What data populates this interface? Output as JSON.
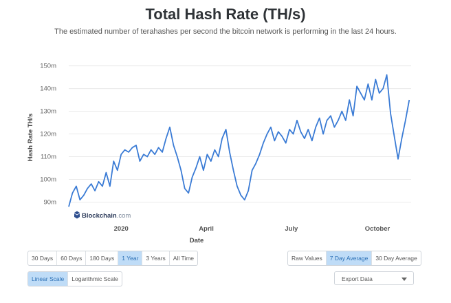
{
  "header": {
    "title": "Total Hash Rate (TH/s)",
    "subtitle": "The estimated number of terahashes per second the bitcoin network is performing in the last 24 hours."
  },
  "watermark": {
    "brand": "Blockchain",
    "suffix": ".com"
  },
  "colors": {
    "line": "#3a7bd5",
    "grid": "#eaeaea",
    "active_bg": "#bfdcf7",
    "active_text": "#2a6fb5"
  },
  "chart_data": {
    "type": "line",
    "title": "Total Hash Rate (TH/s)",
    "xlabel": "Date",
    "ylabel": "Hash Rate TH/s",
    "ylim": [
      85,
      152
    ],
    "y_ticks": [
      90,
      100,
      110,
      120,
      130,
      140,
      150
    ],
    "y_tick_labels": [
      "90m",
      "100m",
      "110m",
      "120m",
      "130m",
      "140m",
      "150m"
    ],
    "x_ticks": [
      "2020-01-01",
      "2020-04-01",
      "2020-07-01",
      "2020-10-01"
    ],
    "x_tick_labels": [
      "2020",
      "April",
      "July",
      "October"
    ],
    "x_range": [
      "2019-11-06",
      "2020-11-06"
    ],
    "grid": true,
    "series": [
      {
        "x": [
          "2019-11-06",
          "2019-11-10",
          "2019-11-14",
          "2019-11-18",
          "2019-11-22",
          "2019-11-26",
          "2019-11-30",
          "2019-12-04",
          "2019-12-08",
          "2019-12-12",
          "2019-12-16",
          "2019-12-20",
          "2019-12-24",
          "2019-12-28",
          "2020-01-01",
          "2020-01-05",
          "2020-01-09",
          "2020-01-13",
          "2020-01-17",
          "2020-01-21",
          "2020-01-25",
          "2020-01-29",
          "2020-02-02",
          "2020-02-06",
          "2020-02-10",
          "2020-02-14",
          "2020-02-18",
          "2020-02-22",
          "2020-02-26",
          "2020-03-01",
          "2020-03-05",
          "2020-03-09",
          "2020-03-13",
          "2020-03-17",
          "2020-03-21",
          "2020-03-25",
          "2020-03-29",
          "2020-04-02",
          "2020-04-06",
          "2020-04-10",
          "2020-04-14",
          "2020-04-18",
          "2020-04-22",
          "2020-04-26",
          "2020-04-30",
          "2020-05-04",
          "2020-05-08",
          "2020-05-12",
          "2020-05-16",
          "2020-05-20",
          "2020-05-24",
          "2020-05-28",
          "2020-06-01",
          "2020-06-05",
          "2020-06-09",
          "2020-06-13",
          "2020-06-17",
          "2020-06-21",
          "2020-06-25",
          "2020-06-29",
          "2020-07-03",
          "2020-07-07",
          "2020-07-11",
          "2020-07-15",
          "2020-07-19",
          "2020-07-23",
          "2020-07-27",
          "2020-07-31",
          "2020-08-04",
          "2020-08-08",
          "2020-08-12",
          "2020-08-16",
          "2020-08-20",
          "2020-08-24",
          "2020-08-28",
          "2020-09-01",
          "2020-09-05",
          "2020-09-09",
          "2020-09-13",
          "2020-09-17",
          "2020-09-21",
          "2020-09-25",
          "2020-09-29",
          "2020-10-03",
          "2020-10-07",
          "2020-10-11",
          "2020-10-15",
          "2020-10-19",
          "2020-10-23",
          "2020-10-27",
          "2020-10-31",
          "2020-11-04"
        ],
        "y": [
          88,
          94,
          97,
          91,
          93,
          96,
          98,
          95,
          99,
          97,
          103,
          97,
          108,
          104,
          111,
          113,
          112,
          114,
          115,
          108,
          111,
          110,
          113,
          111,
          114,
          112,
          118,
          123,
          115,
          110,
          104,
          96,
          94,
          101,
          105,
          110,
          104,
          111,
          108,
          113,
          110,
          118,
          122,
          112,
          104,
          97,
          93,
          91,
          95,
          104,
          107,
          111,
          116,
          120,
          123,
          117,
          121,
          119,
          116,
          122,
          120,
          126,
          121,
          118,
          122,
          117,
          123,
          127,
          120,
          126,
          128,
          123,
          126,
          130,
          126,
          135,
          128,
          141,
          138,
          135,
          142,
          135,
          144,
          138,
          140,
          146,
          129,
          119,
          109,
          118,
          126,
          135
        ]
      }
    ]
  },
  "range_buttons": {
    "items": [
      {
        "label": "30 Days"
      },
      {
        "label": "60 Days"
      },
      {
        "label": "180 Days"
      },
      {
        "label": "1 Year"
      },
      {
        "label": "3 Years"
      },
      {
        "label": "All Time"
      }
    ],
    "active_index": 3
  },
  "average_buttons": {
    "items": [
      {
        "label": "Raw Values"
      },
      {
        "label": "7 Day Average"
      },
      {
        "label": "30 Day Average"
      }
    ],
    "active_index": 1
  },
  "scale_buttons": {
    "items": [
      {
        "label": "Linear Scale"
      },
      {
        "label": "Logarithmic Scale"
      }
    ],
    "active_index": 0
  },
  "export": {
    "label": "Export Data"
  }
}
